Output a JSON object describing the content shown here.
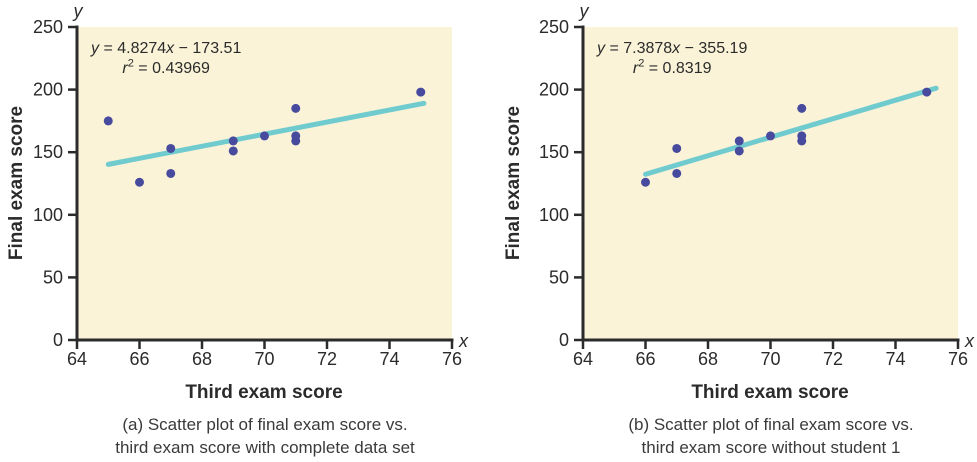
{
  "colors": {
    "plot_background": "#FAF3D8",
    "point": "#474A9D",
    "trendline": "#70CBCE",
    "axis": "#2B2B2B",
    "caption_text": "#3A3A3A"
  },
  "chart_data": [
    {
      "type": "scatter",
      "xlabel": "Third exam score",
      "ylabel": "Final exam score",
      "x_axis_symbol": "x",
      "y_axis_symbol": "y",
      "xlim": [
        64,
        76
      ],
      "ylim": [
        0,
        250
      ],
      "x_ticks": [
        64,
        66,
        68,
        70,
        72,
        74,
        76
      ],
      "y_ticks": [
        0,
        50,
        100,
        150,
        200,
        250
      ],
      "grid": false,
      "points": [
        [
          65,
          175
        ],
        [
          66,
          126
        ],
        [
          67,
          133
        ],
        [
          67,
          153
        ],
        [
          69,
          151
        ],
        [
          69,
          159
        ],
        [
          70,
          163
        ],
        [
          71,
          159
        ],
        [
          71,
          163
        ],
        [
          71,
          185
        ],
        [
          75,
          198
        ]
      ],
      "trendline": {
        "slope": 4.8274,
        "intercept": -173.51,
        "x_start": 65,
        "x_end": 75.1
      },
      "equation": {
        "y_var": "y",
        "after_y": " = 4.8274",
        "x_var": "x",
        "after_x": " − 173.51",
        "r_var": "r",
        "r_exp": "2",
        "after_r": " = 0.43969"
      },
      "caption": [
        "(a) Scatter plot of final exam score vs.",
        "third exam score with complete data set"
      ]
    },
    {
      "type": "scatter",
      "xlabel": "Third exam score",
      "ylabel": "Final exam score",
      "x_axis_symbol": "x",
      "y_axis_symbol": "y",
      "xlim": [
        64,
        76
      ],
      "ylim": [
        0,
        250
      ],
      "x_ticks": [
        64,
        66,
        68,
        70,
        72,
        74,
        76
      ],
      "y_ticks": [
        0,
        50,
        100,
        150,
        200,
        250
      ],
      "grid": false,
      "points": [
        [
          66,
          126
        ],
        [
          67,
          133
        ],
        [
          67,
          153
        ],
        [
          69,
          151
        ],
        [
          69,
          159
        ],
        [
          70,
          163
        ],
        [
          71,
          159
        ],
        [
          71,
          163
        ],
        [
          71,
          185
        ],
        [
          75,
          198
        ]
      ],
      "trendline": {
        "slope": 7.3878,
        "intercept": -355.19,
        "x_start": 66,
        "x_end": 75.3
      },
      "equation": {
        "y_var": "y",
        "after_y": " = 7.3878",
        "x_var": "x",
        "after_x": " − 355.19",
        "r_var": "r",
        "r_exp": "2",
        "after_r": " = 0.8319"
      },
      "caption": [
        "(b) Scatter plot of final exam score vs.",
        "third exam score without student 1"
      ]
    }
  ]
}
